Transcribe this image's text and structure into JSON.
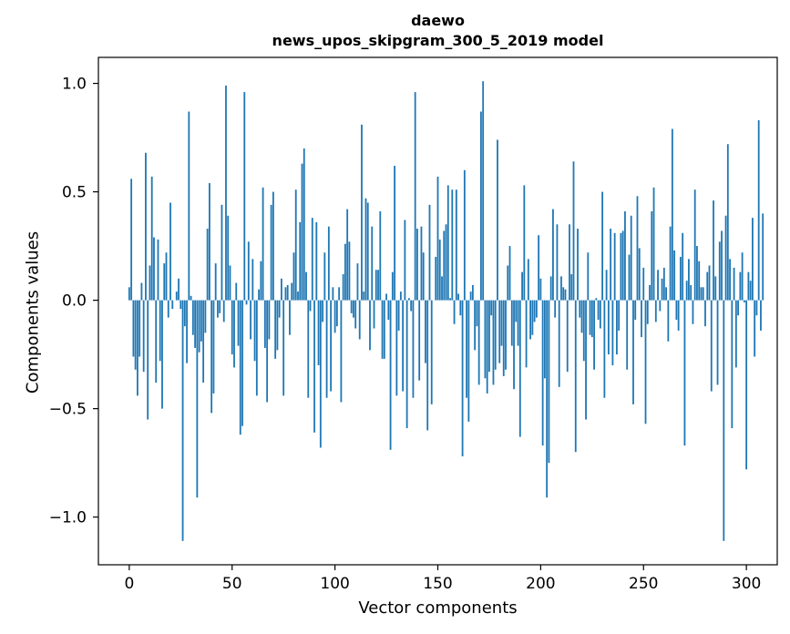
{
  "chart_data": {
    "type": "bar",
    "title_line1": "daewo",
    "title_line2": "news_upos_skipgram_300_5_2019 model",
    "xlabel": "Vector components",
    "ylabel": "Components values",
    "xlim": [
      -15,
      315
    ],
    "ylim": [
      -1.22,
      1.12
    ],
    "xticks": [
      0,
      50,
      100,
      150,
      200,
      250,
      300
    ],
    "yticks": [
      -1.0,
      -0.5,
      0.0,
      0.5,
      1.0
    ],
    "ytick_labels": [
      "−1.0",
      "−0.5",
      "0.0",
      "0.5",
      "1.0"
    ],
    "bar_color": "#1f77b4",
    "grid": false,
    "values": [
      0.06,
      0.56,
      -0.26,
      -0.32,
      -0.44,
      -0.26,
      0.08,
      -0.33,
      0.68,
      -0.55,
      0.16,
      0.57,
      0.29,
      -0.38,
      0.28,
      -0.28,
      -0.5,
      0.17,
      0.22,
      -0.08,
      0.45,
      -0.04,
      0.0,
      0.04,
      0.1,
      -0.04,
      -1.11,
      -0.12,
      -0.29,
      0.87,
      0.02,
      -0.16,
      -0.22,
      -0.91,
      -0.24,
      -0.19,
      -0.38,
      -0.15,
      0.33,
      0.54,
      -0.52,
      -0.43,
      0.17,
      -0.08,
      -0.06,
      0.44,
      -0.1,
      0.99,
      0.39,
      0.16,
      -0.25,
      -0.31,
      0.08,
      -0.21,
      -0.62,
      -0.58,
      0.96,
      -0.02,
      0.27,
      -0.18,
      0.19,
      -0.28,
      -0.44,
      0.05,
      0.18,
      0.52,
      -0.22,
      -0.47,
      -0.18,
      0.44,
      0.5,
      -0.27,
      -0.23,
      -0.08,
      0.1,
      -0.44,
      0.06,
      0.07,
      -0.16,
      0.08,
      0.22,
      0.51,
      0.04,
      0.36,
      0.63,
      0.7,
      0.13,
      -0.45,
      -0.05,
      0.38,
      -0.61,
      0.36,
      -0.3,
      -0.68,
      -0.1,
      0.22,
      -0.45,
      0.34,
      -0.42,
      0.06,
      -0.15,
      -0.12,
      0.06,
      -0.47,
      0.12,
      0.26,
      0.42,
      0.27,
      -0.06,
      -0.08,
      -0.13,
      0.17,
      -0.18,
      0.81,
      0.04,
      0.47,
      0.45,
      -0.23,
      0.34,
      -0.13,
      0.14,
      0.14,
      0.41,
      -0.27,
      -0.27,
      0.03,
      -0.09,
      -0.69,
      0.13,
      0.62,
      -0.44,
      -0.14,
      0.04,
      -0.42,
      0.37,
      -0.59,
      0.01,
      -0.05,
      -0.45,
      0.96,
      0.33,
      -0.37,
      0.34,
      0.22,
      -0.29,
      -0.6,
      0.44,
      -0.48,
      0.0,
      0.2,
      0.57,
      0.28,
      0.11,
      0.32,
      0.35,
      0.53,
      0.01,
      0.51,
      -0.11,
      0.51,
      0.03,
      -0.07,
      -0.72,
      0.6,
      -0.45,
      -0.56,
      0.04,
      0.07,
      -0.23,
      -0.12,
      -0.39,
      0.87,
      1.01,
      -0.36,
      -0.43,
      -0.33,
      -0.07,
      -0.39,
      -0.32,
      0.74,
      -0.29,
      -0.21,
      -0.35,
      -0.32,
      0.16,
      0.25,
      -0.21,
      -0.41,
      -0.1,
      -0.21,
      -0.63,
      0.13,
      0.53,
      -0.31,
      0.19,
      -0.18,
      -0.16,
      -0.1,
      -0.08,
      0.3,
      0.1,
      -0.67,
      -0.36,
      -0.91,
      -0.75,
      0.11,
      0.42,
      -0.08,
      0.35,
      -0.4,
      0.11,
      0.06,
      0.05,
      -0.33,
      0.35,
      0.12,
      0.64,
      -0.7,
      0.33,
      -0.08,
      -0.15,
      -0.28,
      -0.55,
      0.22,
      -0.16,
      -0.17,
      -0.32,
      0.01,
      -0.09,
      -0.13,
      0.5,
      -0.45,
      0.14,
      -0.25,
      0.33,
      -0.3,
      0.31,
      -0.25,
      -0.14,
      0.31,
      0.32,
      0.41,
      -0.32,
      0.21,
      0.39,
      -0.48,
      -0.09,
      0.48,
      0.24,
      -0.17,
      0.15,
      -0.57,
      -0.11,
      0.07,
      0.41,
      0.52,
      -0.1,
      0.14,
      -0.05,
      0.1,
      0.15,
      0.06,
      -0.19,
      0.34,
      0.79,
      0.23,
      -0.09,
      -0.14,
      0.2,
      0.31,
      -0.67,
      0.09,
      0.19,
      0.07,
      -0.11,
      0.51,
      0.25,
      0.18,
      0.06,
      0.06,
      -0.12,
      0.13,
      0.16,
      -0.42,
      0.46,
      0.11,
      -0.39,
      0.27,
      0.32,
      -1.11,
      0.39,
      0.72,
      0.19,
      -0.59,
      0.15,
      -0.31,
      -0.07,
      0.13,
      0.22,
      -0.01,
      -0.78,
      0.13,
      0.09,
      0.38,
      -0.26,
      -0.07,
      0.83,
      -0.14,
      0.4
    ]
  }
}
